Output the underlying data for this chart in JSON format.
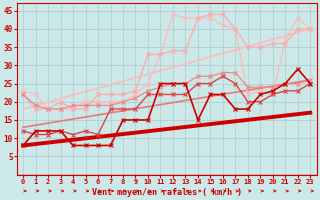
{
  "x": [
    0,
    1,
    2,
    3,
    4,
    5,
    6,
    7,
    8,
    9,
    10,
    11,
    12,
    13,
    14,
    15,
    16,
    17,
    18,
    19,
    20,
    21,
    22,
    23
  ],
  "line_dark_red": [
    8,
    12,
    12,
    12,
    8,
    8,
    8,
    8,
    15,
    15,
    15,
    25,
    25,
    25,
    15,
    22,
    22,
    18,
    18,
    22,
    23,
    25,
    29,
    25
  ],
  "line_med_red": [
    12,
    11,
    11,
    12,
    11,
    12,
    11,
    18,
    18,
    18,
    22,
    22,
    22,
    22,
    25,
    25,
    27,
    25,
    20,
    20,
    22,
    23,
    23,
    25
  ],
  "line_pink1": [
    22,
    19,
    18,
    18,
    19,
    19,
    19,
    19,
    20,
    21,
    23,
    24,
    25,
    25,
    27,
    27,
    28,
    28,
    24,
    24,
    24,
    25,
    25,
    26
  ],
  "line_pink2": [
    22,
    18,
    18,
    20,
    18,
    18,
    22,
    22,
    22,
    23,
    33,
    33,
    34,
    34,
    43,
    44,
    44,
    40,
    35,
    35,
    36,
    36,
    40,
    40
  ],
  "line_pink3": [
    23,
    22,
    18,
    18,
    18,
    20,
    20,
    20,
    20,
    22,
    25,
    33,
    44,
    43,
    43,
    43,
    41,
    40,
    22,
    23,
    22,
    37,
    43,
    40
  ],
  "trend1_x": [
    0,
    23
  ],
  "trend1_y": [
    8,
    17
  ],
  "trend2_x": [
    0,
    23
  ],
  "trend2_y": [
    13,
    26
  ],
  "trend3_x": [
    0,
    23
  ],
  "trend3_y": [
    18,
    40
  ],
  "bg_color": "#cce8e8",
  "grid_color": "#aacccc",
  "color_dark_red": "#cc0000",
  "color_med_red": "#dd4444",
  "color_pink1": "#ee8888",
  "color_pink2": "#ffaaaa",
  "color_pink3": "#ffbbbb",
  "color_trend1": "#cc0000",
  "color_trend2": "#ee7777",
  "color_trend3": "#ffbbbb",
  "xlabel": "Vent moyen/en rafales ( km/h )",
  "ylim": [
    0,
    47
  ],
  "xlim": [
    -0.5,
    23.5
  ],
  "yticks": [
    5,
    10,
    15,
    20,
    25,
    30,
    35,
    40,
    45
  ]
}
